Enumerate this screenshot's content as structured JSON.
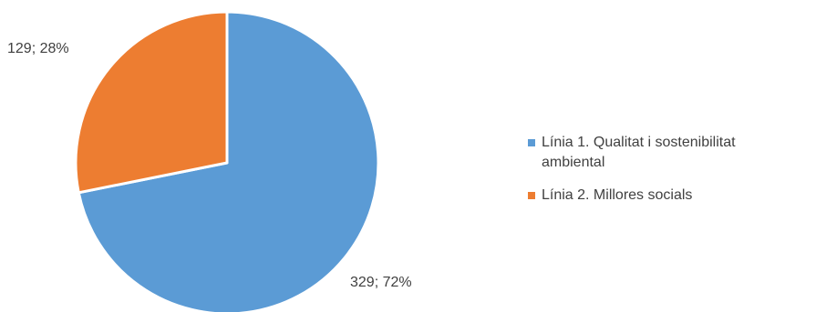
{
  "chart_data": {
    "type": "pie",
    "title": "",
    "series": [
      {
        "name": "Línia 1. Qualitat i sostenibilitat ambiental",
        "value": 329,
        "percent": 72,
        "label": "329; 72%",
        "color": "#5B9BD5"
      },
      {
        "name": "Línia 2. Millores socials",
        "value": 129,
        "percent": 28,
        "label": "129; 28%",
        "color": "#ED7D31"
      }
    ],
    "legend": {
      "position": "right",
      "items": [
        "Línia 1. Qualitat i sostenibilitat ambiental",
        "Línia 2. Millores socials"
      ]
    }
  }
}
